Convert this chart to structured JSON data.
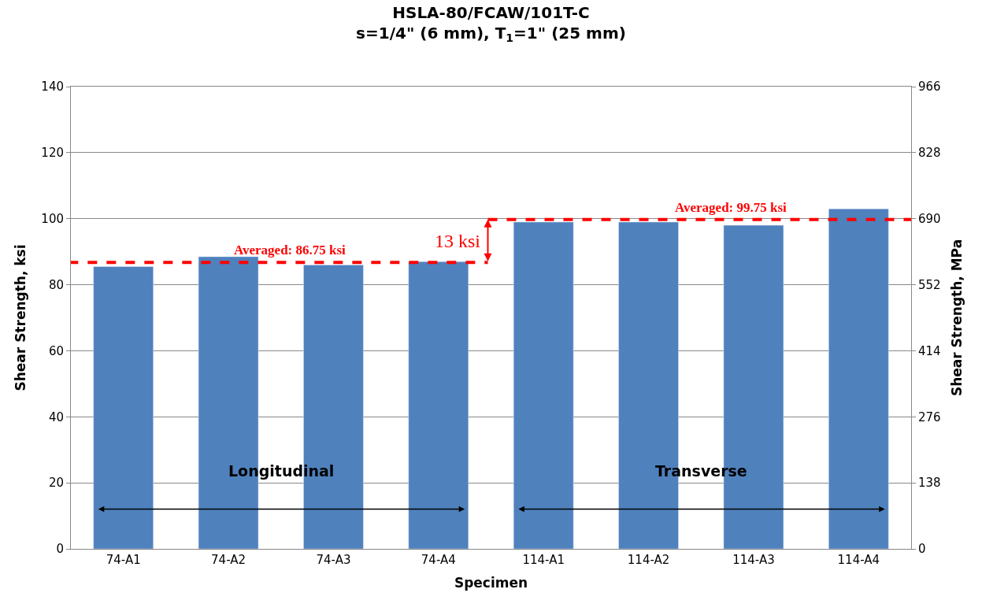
{
  "chart_data": {
    "type": "bar",
    "title": "HSLA-80/FCAW/101T-C",
    "subtitle": "s=1/4\" (6 mm), T$_{1}$=1\" (25 mm)",
    "xlabel": "Specimen",
    "ylabel": "Shear Strength, ksi",
    "y2label": "Shear Strength, MPa",
    "categories": [
      "74-A1",
      "74-A2",
      "74-A3",
      "74-A4",
      "114-A1",
      "114-A2",
      "114-A3",
      "114-A4"
    ],
    "values": [
      85.5,
      88.5,
      86,
      87,
      99,
      99,
      98,
      103
    ],
    "color": "#4f81bd",
    "ylim": [
      0,
      140
    ],
    "yticks": [
      0,
      20,
      40,
      60,
      80,
      100,
      120,
      140
    ],
    "y2lim": [
      0,
      966
    ],
    "y2ticks": [
      0,
      138,
      276,
      414,
      552,
      690,
      828,
      966
    ],
    "grid": "y",
    "ref_lines": [
      {
        "axis": "y",
        "value": 86.75,
        "label": "Averaged: 86.75 ksi",
        "color": "#ff0000",
        "line_style": "dashed"
      },
      {
        "axis": "y",
        "value": 99.75,
        "label": "Averaged: 99.75 ksi",
        "color": "#ff0000",
        "line_style": "dashed"
      }
    ],
    "annotations": [
      "13 ksi",
      "Longitudinal",
      "Transverse"
    ]
  }
}
